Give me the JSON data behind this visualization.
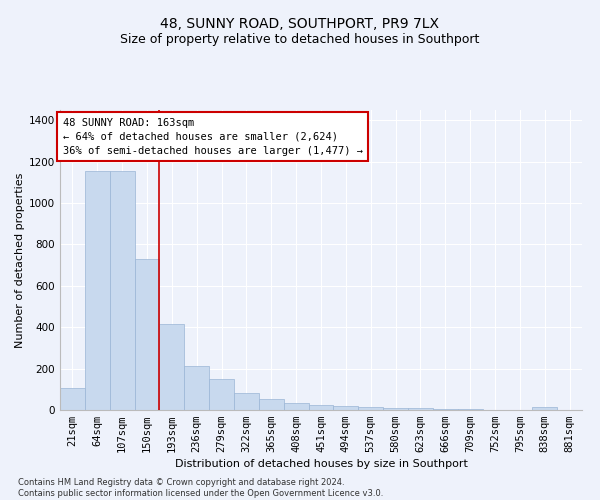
{
  "title": "48, SUNNY ROAD, SOUTHPORT, PR9 7LX",
  "subtitle": "Size of property relative to detached houses in Southport",
  "xlabel": "Distribution of detached houses by size in Southport",
  "ylabel": "Number of detached properties",
  "categories": [
    "21sqm",
    "64sqm",
    "107sqm",
    "150sqm",
    "193sqm",
    "236sqm",
    "279sqm",
    "322sqm",
    "365sqm",
    "408sqm",
    "451sqm",
    "494sqm",
    "537sqm",
    "580sqm",
    "623sqm",
    "666sqm",
    "709sqm",
    "752sqm",
    "795sqm",
    "838sqm",
    "881sqm"
  ],
  "values": [
    105,
    1155,
    1155,
    730,
    415,
    215,
    150,
    80,
    55,
    35,
    25,
    18,
    15,
    12,
    8,
    5,
    3,
    0,
    0,
    15,
    0
  ],
  "bar_color": "#c8d9ee",
  "bar_edge_color": "#9ab5d5",
  "reference_line_color": "#cc0000",
  "reference_line_x": 3.5,
  "annotation_text": "48 SUNNY ROAD: 163sqm\n← 64% of detached houses are smaller (2,624)\n36% of semi-detached houses are larger (1,477) →",
  "annotation_box_facecolor": "#ffffff",
  "annotation_box_edgecolor": "#cc0000",
  "ylim": [
    0,
    1450
  ],
  "yticks": [
    0,
    200,
    400,
    600,
    800,
    1000,
    1200,
    1400
  ],
  "title_fontsize": 10,
  "subtitle_fontsize": 9,
  "xlabel_fontsize": 8,
  "ylabel_fontsize": 8,
  "tick_fontsize": 7.5,
  "annotation_fontsize": 7.5,
  "footer_fontsize": 6,
  "footer_text": "Contains HM Land Registry data © Crown copyright and database right 2024.\nContains public sector information licensed under the Open Government Licence v3.0.",
  "background_color": "#eef2fb",
  "plot_bg_color": "#eef2fb",
  "grid_color": "#ffffff"
}
